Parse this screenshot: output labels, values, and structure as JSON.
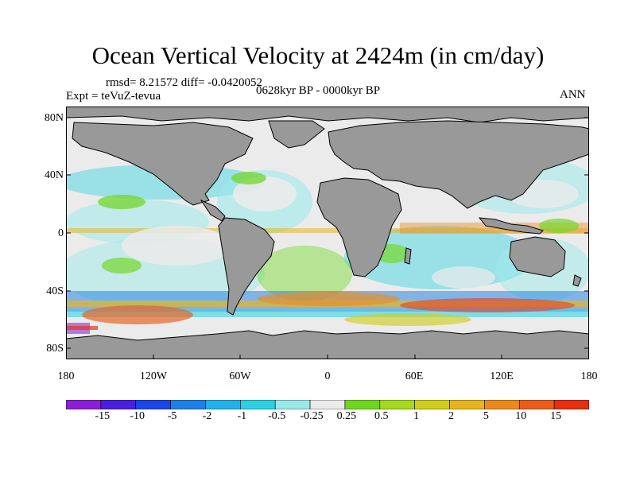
{
  "title": "Ocean Vertical Velocity at 2424m (in cm/day)",
  "stats": "rmsd= 8.21572 diff= -0.0420052",
  "experiment": "Expt = teVuZ-tevua",
  "period": "0628kyr BP - 0000kyr BP",
  "season": "ANN",
  "lat_labels": [
    "80N",
    "40N",
    "0",
    "40S",
    "80S"
  ],
  "lon_labels": [
    "180",
    "120W",
    "60W",
    "0",
    "60E",
    "120E",
    "180"
  ],
  "colorbar": {
    "levels": [
      "-15",
      "-10",
      "-5",
      "-2",
      "-1",
      "-0.5",
      "-0.25",
      "0.25",
      "0.5",
      "1",
      "2",
      "5",
      "10",
      "15"
    ],
    "colors": [
      "#8a1fd6",
      "#4b1fe0",
      "#1c46e8",
      "#1e7fe6",
      "#22b0e6",
      "#2fd0e3",
      "#9ae9e9",
      "#ebebeb",
      "#6fd620",
      "#a6d820",
      "#d0cc1a",
      "#e6b41c",
      "#ea8a1c",
      "#ea5e1c",
      "#e62e10"
    ]
  },
  "colors": {
    "land": "#999999",
    "coast": "#000000",
    "neutral": "#ebebeb"
  }
}
